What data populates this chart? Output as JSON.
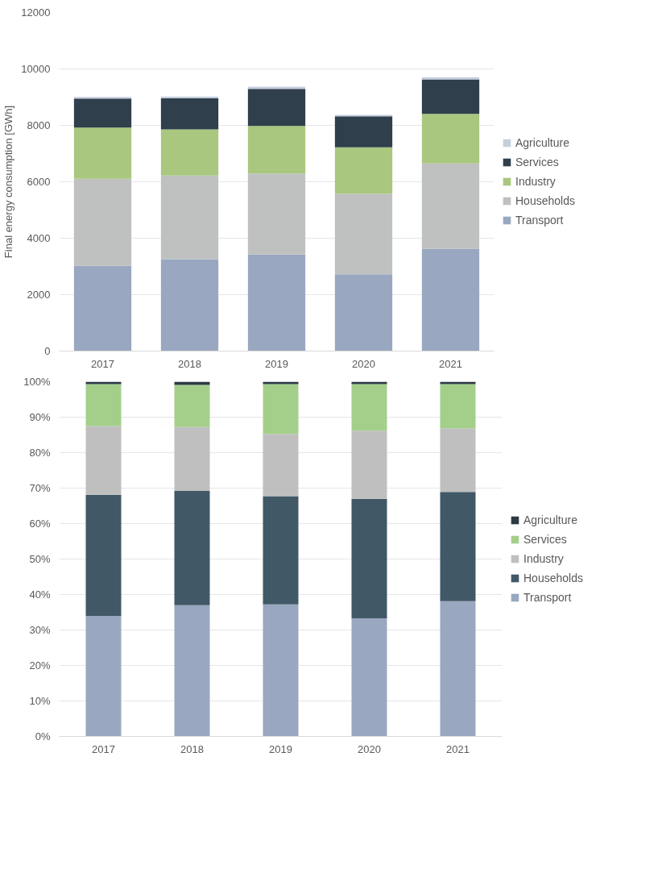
{
  "chart_data": [
    {
      "type": "bar",
      "stacked": true,
      "ylabel": "Final energy consumption [GWh]",
      "categories": [
        "2017",
        "2018",
        "2019",
        "2020",
        "2021"
      ],
      "series": [
        {
          "name": "Transport",
          "color": "#99a8c0",
          "values": [
            3030,
            3260,
            3420,
            2720,
            3630
          ]
        },
        {
          "name": "Households",
          "color": "#bfc0c0",
          "values": [
            3080,
            2960,
            2870,
            2850,
            3020
          ]
        },
        {
          "name": "Industry",
          "color": "#a9c77e",
          "values": [
            1810,
            1640,
            1690,
            1650,
            1760
          ]
        },
        {
          "name": "Services",
          "color": "#2f3f4c",
          "values": [
            1030,
            1100,
            1310,
            1100,
            1220
          ]
        },
        {
          "name": "Agriculture",
          "color": "#c5d0de",
          "values": [
            60,
            60,
            80,
            50,
            80
          ]
        }
      ],
      "ylim": [
        0,
        12000
      ],
      "yticks": [
        0,
        2000,
        4000,
        6000,
        8000,
        10000,
        12000
      ],
      "grid": "y",
      "legend": "right"
    },
    {
      "type": "bar",
      "stacked": true,
      "categories": [
        "2017",
        "2018",
        "2019",
        "2020",
        "2021"
      ],
      "series": [
        {
          "name": "Transport",
          "color": "#99a8c0",
          "values": [
            33.9,
            37.0,
            37.2,
            33.3,
            38.1
          ]
        },
        {
          "name": "Households",
          "color": "#415866",
          "values": [
            34.2,
            32.2,
            30.5,
            33.7,
            30.8
          ]
        },
        {
          "name": "Industry",
          "color": "#bfbfbf",
          "values": [
            19.4,
            18.0,
            17.6,
            19.2,
            18.0
          ]
        },
        {
          "name": "Services",
          "color": "#a4cf8a",
          "values": [
            11.8,
            11.9,
            14.0,
            13.1,
            12.4
          ]
        },
        {
          "name": "Agriculture",
          "color": "#2c3a44",
          "values": [
            0.7,
            0.9,
            0.7,
            0.7,
            0.7
          ]
        }
      ],
      "ylim": [
        0,
        100
      ],
      "yticks": [
        {
          "value": 0,
          "label": "0%"
        },
        {
          "value": 10,
          "label": "10%"
        },
        {
          "value": 20,
          "label": "20%"
        },
        {
          "value": 30,
          "label": "30%"
        },
        {
          "value": 40,
          "label": "40%"
        },
        {
          "value": 50,
          "label": "50%"
        },
        {
          "value": 60,
          "label": "60%"
        },
        {
          "value": 70,
          "label": "70%"
        },
        {
          "value": 80,
          "label": "80%"
        },
        {
          "value": 90,
          "label": "90%"
        },
        {
          "value": 100,
          "label": "100%"
        }
      ],
      "grid": "y",
      "legend": "right"
    }
  ]
}
